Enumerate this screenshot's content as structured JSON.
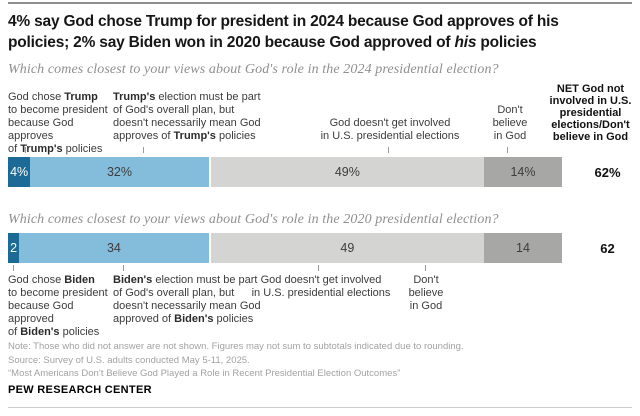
{
  "brand": "PEW RESEARCH CENTER",
  "title": "4% say God chose Trump for president in 2024 because God approves of his\npolicies; 2% say Biden won in 2020 because God approved of *his* policies",
  "chart_data": [
    {
      "type": "bar",
      "subtype": "stacked-horizontal",
      "title": "Which comes closest to your views about God's role in the 2024 presidential election?",
      "categories": [
        "God chose Trump to become president because God approves of Trump's policies",
        "Trump's election must be part of God's overall plan, but doesn't necessarily mean God approves of Trump's policies",
        "God doesn't get involved in U.S. presidential elections",
        "Don't believe in God"
      ],
      "values": [
        4,
        32,
        49,
        14
      ],
      "value_labels": [
        "4%",
        "32%",
        "49%",
        "14%"
      ],
      "colors": [
        "#1c6b96",
        "#84bcdb",
        "#d4d4d2",
        "#a7a7a5"
      ],
      "net": {
        "label": "NET God not involved in U.S. presidential elections/Don't believe in God",
        "value": 62,
        "display": "62%"
      }
    },
    {
      "type": "bar",
      "subtype": "stacked-horizontal",
      "title": "Which comes closest to your views about God's role in the 2020 presidential election?",
      "categories": [
        "God chose Biden to become president because God approved of Biden's policies",
        "Biden's election must be part of God's overall plan, but doesn't necessarily mean God approved of Biden's policies",
        "God doesn't get involved in U.S. presidential elections",
        "Don't believe in God"
      ],
      "values": [
        2,
        34,
        49,
        14
      ],
      "value_labels": [
        "2",
        "34",
        "49",
        "14"
      ],
      "colors": [
        "#1c6b96",
        "#84bcdb",
        "#d4d4d2",
        "#a7a7a5"
      ],
      "net": {
        "label": "NET God not involved in U.S. presidential elections/Don't believe in God",
        "value": 62,
        "display": "62"
      }
    }
  ],
  "display": {
    "net_header": "NET God not\ninvolved in U.S.\npresidential\nelections/Don't\nbelieve in God",
    "labels_2024": [
      "God chose **Trump**\nto become president\nbecause God approves\nof **Trump's** policies",
      "**Trump's** election must be part\nof God's overall plan, but\ndoesn't necessarily mean God\napproves of **Trump's** policies",
      "God doesn't get involved\nin U.S. presidential elections",
      "Don't\nbelieve\nin God"
    ],
    "labels_2020": [
      "God chose **Biden**\nto become president\nbecause God approved\nof **Biden's** policies",
      "**Biden's** election must be part\nof God's overall plan, but\ndoesn't necessarily mean God\napproved of **Biden's** policies",
      "God doesn't get involved\nin U.S. presidential elections",
      "Don't\nbelieve\nin God"
    ]
  },
  "notes": "Note: Those who did not answer are not shown. Figures may not sum to subtotals indicated due to rounding.\nSource: Survey of U.S. adults conducted May 5-11, 2025.\n“Most Americans Don’t Believe God Played a Role in Recent Presidential Election Outcomes”"
}
